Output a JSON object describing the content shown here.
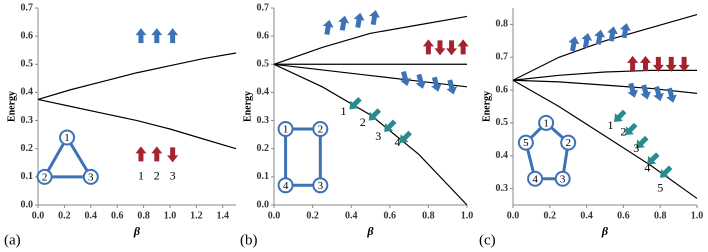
{
  "chart_data": [
    {
      "type": "line",
      "panel_label": "(a)",
      "y_label": "Energy",
      "x_label": "β",
      "xlim": [
        0,
        1.5
      ],
      "xticks": [
        {
          "value": 0,
          "label": "0.0"
        },
        0.2,
        0.4,
        0.6,
        0.8,
        {
          "value": 1,
          "label": "1.0"
        },
        1.2,
        1.4
      ],
      "ylim": [
        0,
        0.7
      ],
      "yticks": [
        {
          "value": 0,
          "label": "0.0"
        },
        0.1,
        0.2,
        0.3,
        0.4,
        0.5,
        0.6,
        0.7
      ],
      "x": [
        0,
        0.25,
        0.5,
        0.75,
        1,
        1.25,
        1.5
      ],
      "series": [
        {
          "color": "#000000",
          "values": [
            0.375,
            0.41,
            0.44,
            0.47,
            0.495,
            0.52,
            0.54
          ]
        },
        {
          "color": "#000000",
          "values": [
            0.375,
            0.35,
            0.325,
            0.3,
            0.27,
            0.235,
            0.2
          ]
        }
      ],
      "site_labels": [
        "1",
        "2",
        "3"
      ],
      "node_labels": [
        "1",
        "2",
        "3"
      ]
    },
    {
      "type": "line",
      "panel_label": "(b)",
      "y_label": "Energy",
      "x_label": "β",
      "xlim": [
        0,
        1
      ],
      "xticks": [
        {
          "value": 0,
          "label": "0.0"
        },
        0.2,
        0.4,
        0.6,
        0.8,
        {
          "value": 1,
          "label": "1.0"
        }
      ],
      "ylim": [
        0,
        0.7
      ],
      "yticks": [
        {
          "value": 0,
          "label": "0.0"
        },
        0.1,
        0.2,
        0.3,
        0.4,
        0.5,
        0.6,
        0.7
      ],
      "x": [
        0,
        0.25,
        0.5,
        0.75,
        1
      ],
      "series": [
        {
          "color": "#000000",
          "values": [
            0.5,
            0.56,
            0.61,
            0.64,
            0.67
          ]
        },
        {
          "color": "#000000",
          "values": [
            0.5,
            0.5,
            0.5,
            0.5,
            0.5
          ]
        },
        {
          "color": "#000000",
          "values": [
            0.5,
            0.48,
            0.46,
            0.44,
            0.42
          ]
        },
        {
          "color": "#000000",
          "values": [
            0.5,
            0.42,
            0.32,
            0.18,
            0.0
          ]
        }
      ],
      "site_labels": [
        "1",
        "2",
        "3",
        "4"
      ],
      "node_labels": [
        "1",
        "2",
        "3",
        "4"
      ]
    },
    {
      "type": "line",
      "panel_label": "(c)",
      "y_label": "Energy",
      "x_label": "β",
      "xlim": [
        0,
        1
      ],
      "xticks": [
        {
          "value": 0,
          "label": "0.0"
        },
        0.2,
        0.4,
        0.6,
        0.8,
        {
          "value": 1,
          "label": "1.0"
        }
      ],
      "ylim": [
        0.25,
        0.85
      ],
      "yticks": [
        0.3,
        0.4,
        0.5,
        0.6,
        0.7,
        0.8
      ],
      "x": [
        0,
        0.25,
        0.5,
        0.75,
        1
      ],
      "series": [
        {
          "color": "#000000",
          "values": [
            0.63,
            0.7,
            0.75,
            0.79,
            0.83
          ]
        },
        {
          "color": "#000000",
          "values": [
            0.63,
            0.645,
            0.655,
            0.66,
            0.66
          ]
        },
        {
          "color": "#000000",
          "values": [
            0.63,
            0.625,
            0.615,
            0.605,
            0.59
          ]
        },
        {
          "color": "#000000",
          "values": [
            0.63,
            0.55,
            0.46,
            0.37,
            0.27
          ]
        }
      ],
      "site_labels": [
        "1",
        "2",
        "3",
        "4",
        "5"
      ],
      "node_labels": [
        "1",
        "2",
        "3",
        "4",
        "5"
      ]
    }
  ]
}
